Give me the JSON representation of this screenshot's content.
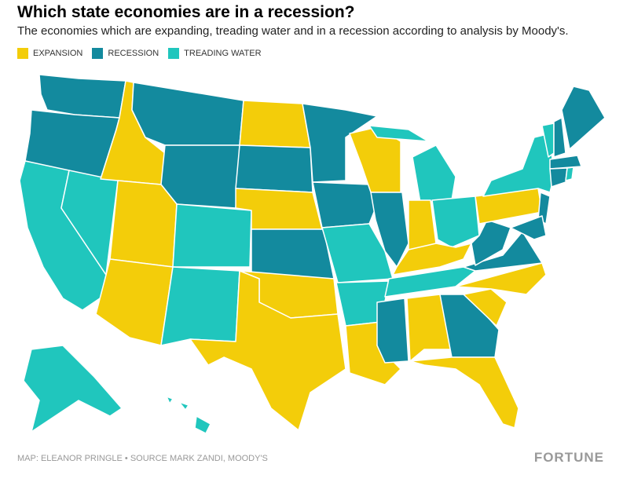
{
  "header": {
    "title": "Which state economies are in a recession?",
    "subtitle": "The economies which are expanding, treading water and in a recession according to analysis by Moody's."
  },
  "legend": [
    {
      "label": "EXPANSION",
      "color": "#f3cd0a"
    },
    {
      "label": "RECESSION",
      "color": "#138a9e"
    },
    {
      "label": "TREADING WATER",
      "color": "#20c6bd"
    }
  ],
  "footer": {
    "credit": "MAP: ELEANOR PRINGLE • SOURCE MARK ZANDI, MOODY'S",
    "logo": "FORTUNE"
  }
}
